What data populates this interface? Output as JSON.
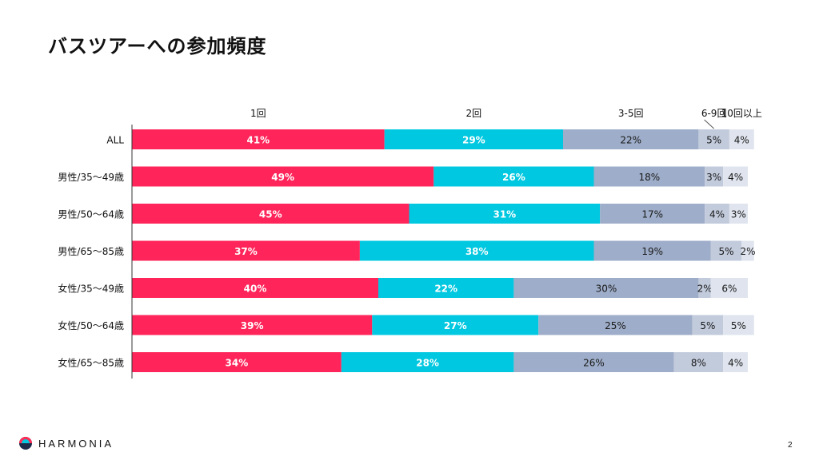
{
  "page": {
    "title": "バスツアーへの参加頻度",
    "page_number": "2"
  },
  "brand": {
    "name": "HARMONIA",
    "colors": {
      "red": "#ff2d55",
      "cyan": "#00c8e0",
      "navy": "#1c2b4a"
    }
  },
  "chart_data": {
    "type": "bar",
    "orientation": "horizontal",
    "stacked": true,
    "normalized": true,
    "title": "バスツアーへの参加頻度",
    "categories": [
      "ALL",
      "男性/35～49歳",
      "男性/50～64歳",
      "男性/65～85歳",
      "女性/35～49歳",
      "女性/50～64歳",
      "女性/65～85歳"
    ],
    "series": [
      {
        "name": "1回",
        "color": "#ff2459",
        "label_color": "#ffffff",
        "values": [
          41,
          49,
          45,
          37,
          40,
          39,
          34
        ],
        "labels": [
          "41%",
          "49%",
          "45%",
          "37%",
          "40%",
          "39%",
          "34%"
        ]
      },
      {
        "name": "2回",
        "color": "#00c8e0",
        "label_color": "#ffffff",
        "values": [
          29,
          26,
          31,
          38,
          22,
          27,
          28
        ],
        "labels": [
          "29%",
          "26%",
          "31%",
          "38%",
          "22%",
          "27%",
          "28%"
        ]
      },
      {
        "name": "3-5回",
        "color": "#9eadc9",
        "label_color": "#1a1a1a",
        "values": [
          22,
          18,
          17,
          19,
          30,
          25,
          26
        ],
        "labels": [
          "22%",
          "18%",
          "17%",
          "19%",
          "30%",
          "25%",
          "26%"
        ]
      },
      {
        "name": "6-9回",
        "color": "#c2cbdc",
        "label_color": "#1a1a1a",
        "values": [
          5,
          3,
          4,
          5,
          2,
          5,
          8
        ],
        "labels": [
          "5%",
          "3%",
          "4%",
          "5%",
          "2%",
          "5%",
          "8%"
        ]
      },
      {
        "name": "10回以上",
        "color": "#dfe4ee",
        "label_color": "#1a1a1a",
        "values": [
          4,
          4,
          3,
          2,
          6,
          5,
          4
        ],
        "labels": [
          "4%",
          "4%",
          "3%",
          "2%",
          "6%",
          "5%",
          "4%"
        ]
      }
    ],
    "xlim": [
      0,
      100
    ],
    "legend_position": "top",
    "grid": false
  }
}
